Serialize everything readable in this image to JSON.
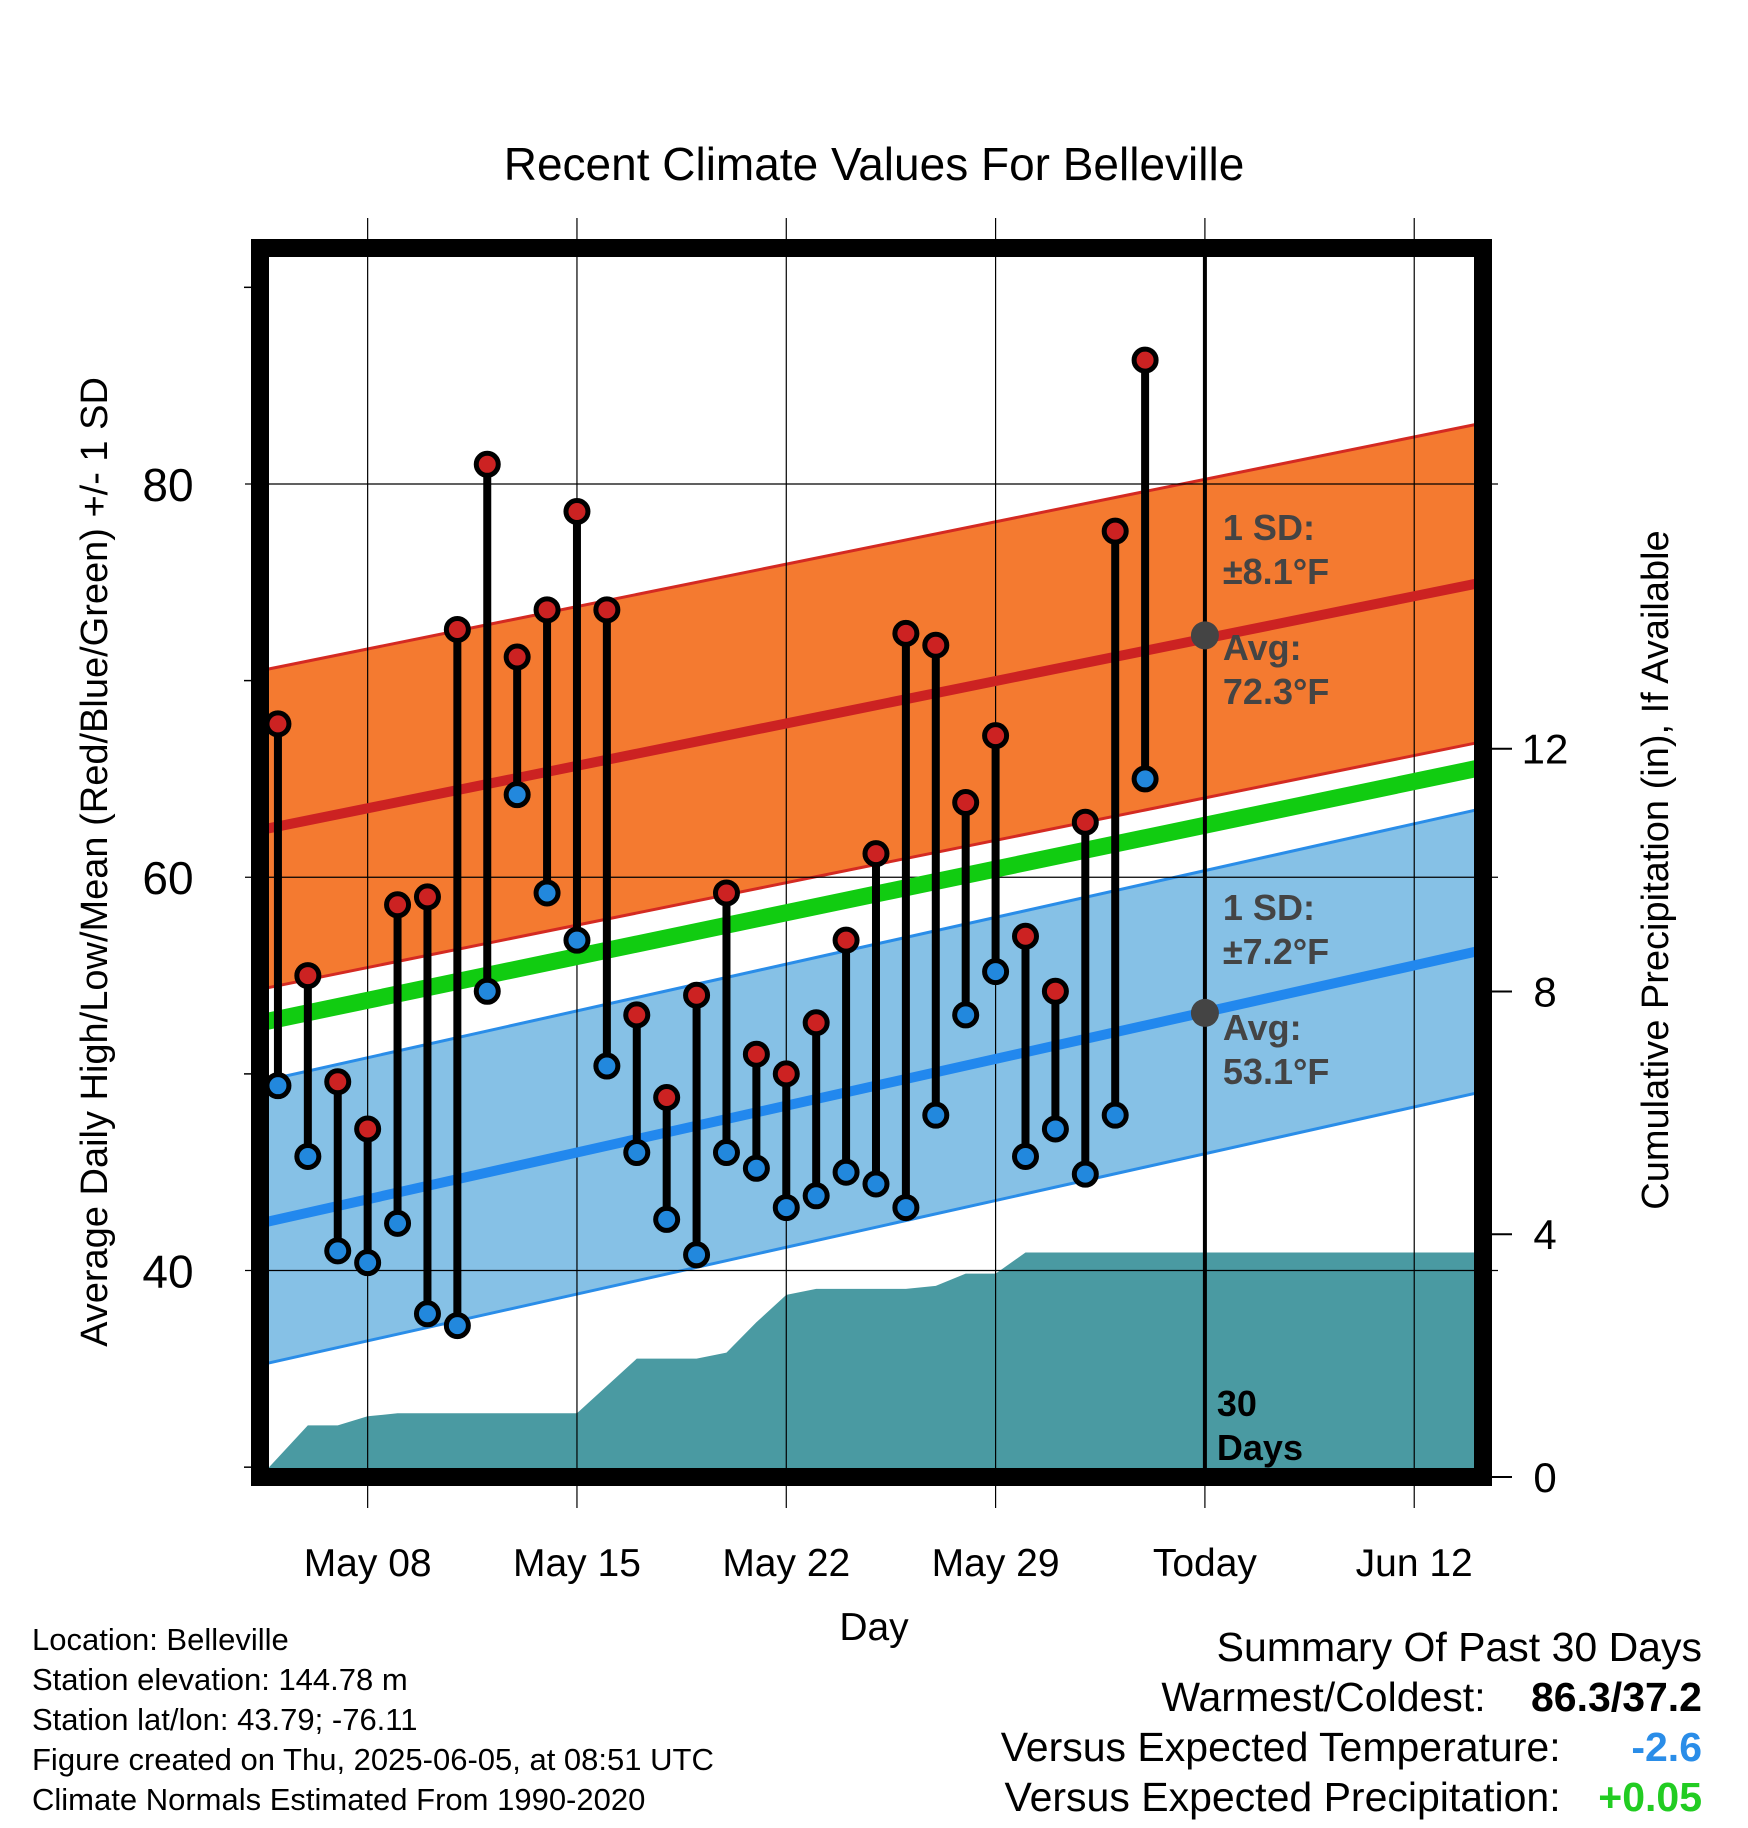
{
  "chart_data": {
    "type": "line",
    "title": "Recent Climate Values For Belleville",
    "xlabel": "Day",
    "ylabel_left": "Average Daily High/Low/Mean (Red/Blue/Green) +/- 1 SD",
    "ylabel_right": "Cumulative Precipitation (in), If Available",
    "y_range": [
      29.5,
      92
    ],
    "y_ticks": [
      80,
      60,
      40
    ],
    "precip_range": [
      0,
      20.25
    ],
    "precip_ticks": [
      0,
      4,
      8,
      12
    ],
    "x_range": [
      -0.6,
      40.3
    ],
    "x_ticks": [
      {
        "day": 3,
        "label": "May 08"
      },
      {
        "day": 10,
        "label": "May 15"
      },
      {
        "day": 17,
        "label": "May 22"
      },
      {
        "day": 24,
        "label": "May 29"
      },
      {
        "day": 31,
        "label": "Today"
      },
      {
        "day": 38,
        "label": "Jun 12"
      }
    ],
    "normal_high": {
      "start": 62.4,
      "end": 75.0,
      "sd_label": "1 SD:",
      "sd_value": "±8.1°F",
      "avg_label": "Avg:",
      "avg_value": "72.3°F",
      "today_avg": 72.3
    },
    "normal_low": {
      "start": 42.4,
      "end": 56.3,
      "sd_label": "1 SD:",
      "sd_value": "±7.2°F",
      "avg_label": "Avg:",
      "avg_value": "53.1°F",
      "today_avg": 53.1
    },
    "normal_mean": {
      "start": 52.6,
      "end": 65.6
    },
    "series": [
      {
        "name": "High",
        "color": "#cc2222",
        "values": [
          67.8,
          55.0,
          49.6,
          47.2,
          58.6,
          59.0,
          72.6,
          81.0,
          71.2,
          73.6,
          78.6,
          73.6,
          53.0,
          48.8,
          54.0,
          59.2,
          51.0,
          50.0,
          52.6,
          56.8,
          61.2,
          72.4,
          71.8,
          63.8,
          67.2,
          57.0,
          54.2,
          62.8,
          77.6,
          86.3
        ],
        "days": [
          0,
          1,
          2,
          3,
          4,
          5,
          6,
          7,
          8,
          9,
          10,
          11,
          12,
          13,
          14,
          15,
          16,
          17,
          18,
          19,
          20,
          21,
          22,
          23,
          24,
          25,
          26,
          27,
          28,
          29
        ]
      },
      {
        "name": "Low",
        "color": "#2288dd",
        "values": [
          49.4,
          45.8,
          41.0,
          40.4,
          42.4,
          37.8,
          37.2,
          54.2,
          64.2,
          59.2,
          56.8,
          50.4,
          46.0,
          42.6,
          40.8,
          46.0,
          45.2,
          43.2,
          43.8,
          45.0,
          44.4,
          43.2,
          47.9,
          53.0,
          55.2,
          45.8,
          47.2,
          44.9,
          47.9,
          65.0
        ],
        "days": [
          0,
          1,
          2,
          3,
          4,
          5,
          6,
          7,
          8,
          9,
          10,
          11,
          12,
          13,
          14,
          15,
          16,
          17,
          18,
          19,
          20,
          21,
          22,
          23,
          24,
          25,
          26,
          27,
          28,
          29
        ]
      },
      {
        "name": "Cumulative Precipitation",
        "color": "#4a9aa2",
        "days": [
          -0.6,
          1.0,
          2.0,
          3.0,
          4.0,
          5.0,
          6.0,
          7.0,
          8.0,
          9.0,
          10.0,
          11.0,
          12.0,
          13.0,
          14.0,
          15.0,
          16.0,
          17.0,
          18.0,
          19.0,
          20.0,
          21.0,
          22.0,
          23.0,
          24.0,
          25.0,
          26.0,
          27.0,
          28.0,
          29.0,
          40.3
        ],
        "values": [
          0.0,
          0.85,
          0.85,
          1.0,
          1.05,
          1.05,
          1.05,
          1.05,
          1.05,
          1.05,
          1.05,
          1.5,
          1.95,
          1.95,
          1.95,
          2.05,
          2.55,
          3.0,
          3.1,
          3.1,
          3.1,
          3.1,
          3.15,
          3.35,
          3.35,
          3.7,
          3.7,
          3.7,
          3.7,
          3.7,
          3.7
        ]
      }
    ],
    "window_label": "30 Days",
    "grid": true
  },
  "info": {
    "location": "Location: Belleville",
    "elevation": "Station elevation: 144.78 m",
    "latlon": "Station lat/lon: 43.79; -76.11",
    "created": "Figure created on Thu, 2025-06-05, at 08:51 UTC",
    "normals": "Climate Normals Estimated From 1990-2020"
  },
  "summary": {
    "title": "Summary Of Past 30 Days",
    "warmest_label": "Warmest/Coldest:",
    "warmest_value": "86.3/37.2",
    "temp_label": "Versus Expected Temperature:",
    "temp_value": "-2.6",
    "temp_color": "#2a8de8",
    "precip_label": "Versus Expected Precipitation:",
    "precip_value": "+0.05",
    "precip_color": "#22cc22"
  }
}
